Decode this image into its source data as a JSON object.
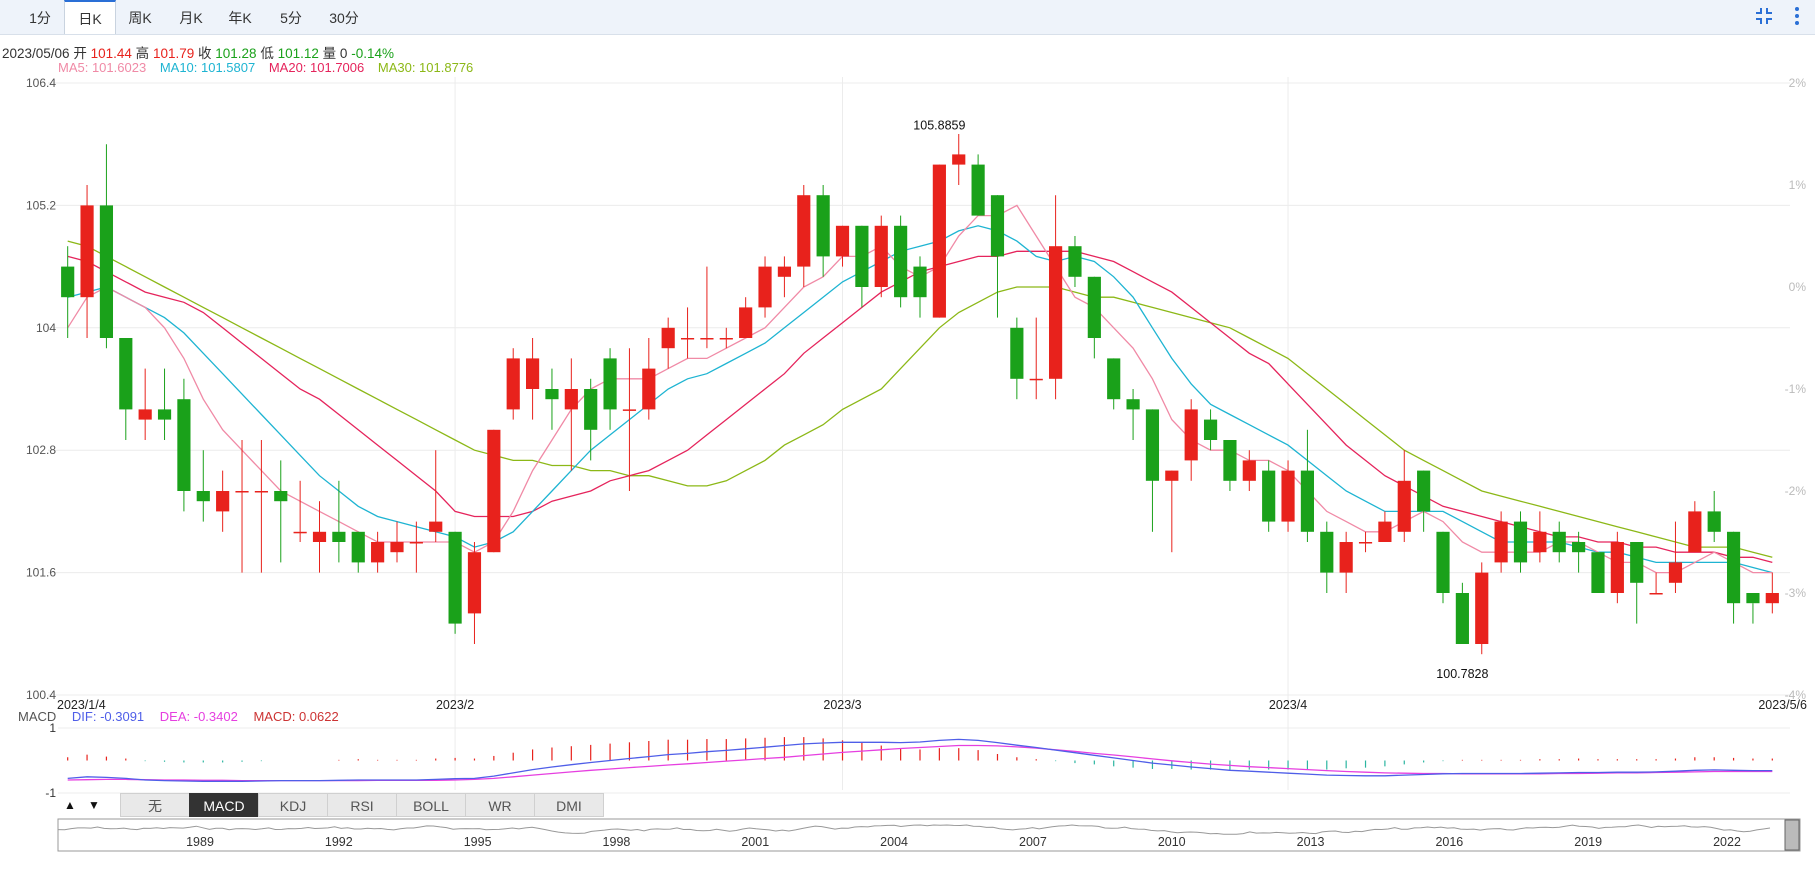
{
  "tabs": [
    {
      "label": "1分",
      "active": false
    },
    {
      "label": "日K",
      "active": true
    },
    {
      "label": "周K",
      "active": false
    },
    {
      "label": "月K",
      "active": false
    },
    {
      "label": "年K",
      "active": false
    },
    {
      "label": "5分",
      "active": false
    },
    {
      "label": "30分",
      "active": false
    }
  ],
  "toolbar": {
    "collapse_icon": "collapse-icon",
    "menu_icon": "more-vertical-icon"
  },
  "info": {
    "date": "2023/05/06",
    "open_label": "开",
    "open": "101.44",
    "high_label": "高",
    "high": "101.79",
    "close_label": "收",
    "close": "101.28",
    "low_label": "低",
    "low": "101.12",
    "vol_label": "量",
    "vol": "0",
    "change": "-0.14%"
  },
  "ma": {
    "ma5": "MA5: 101.6023",
    "ma10": "MA10: 101.5807",
    "ma20": "MA20: 101.7006",
    "ma30": "MA30: 101.8776"
  },
  "macd_info": {
    "label": "MACD",
    "dif": "DIF: -0.3091",
    "dea": "DEA: -0.3402",
    "macd": "MACD: 0.0622"
  },
  "indicators": [
    "无",
    "MACD",
    "KDJ",
    "RSI",
    "BOLL",
    "WR",
    "DMI"
  ],
  "active_indicator": "MACD",
  "colors": {
    "up": "#e8221c",
    "down": "#1aa11a",
    "ma5": "#f08aa6",
    "ma10": "#1eb4d2",
    "ma20": "#e5245c",
    "ma30": "#8cb817",
    "dif": "#4f5ee8",
    "dea": "#e63fe0",
    "grid": "#ececec"
  },
  "chart_data": {
    "type": "candlestick",
    "y_axis": {
      "ticks": [
        "106.4",
        "105.2",
        "104",
        "102.8",
        "101.6",
        "100.4"
      ],
      "min": 100.4,
      "max": 106.4
    },
    "pct_axis": {
      "ticks": [
        "2%",
        "1%",
        "0%",
        "-1%",
        "-2%",
        "-3%",
        "-4%"
      ],
      "min": -4,
      "max": 2
    },
    "x_axis": {
      "ticks": [
        {
          "label": "2023/1/4",
          "index": 0
        },
        {
          "label": "2023/2",
          "index": 20
        },
        {
          "label": "2023/3",
          "index": 40
        },
        {
          "label": "2023/4",
          "index": 63
        },
        {
          "label": "2023/5/6",
          "index": 87
        }
      ]
    },
    "annotations": [
      {
        "label": "105.8859",
        "index": 45,
        "value": 105.8859
      },
      {
        "label": "100.7828",
        "index": 72,
        "value": 100.7828
      }
    ],
    "candles": [
      [
        104.6,
        104.3,
        104.8,
        103.9
      ],
      [
        104.3,
        105.2,
        105.4,
        103.9
      ],
      [
        105.2,
        103.9,
        105.8,
        103.8
      ],
      [
        103.9,
        103.2,
        103.9,
        102.9
      ],
      [
        103.1,
        103.2,
        103.6,
        102.9
      ],
      [
        103.2,
        103.1,
        103.6,
        102.9
      ],
      [
        103.3,
        102.4,
        103.5,
        102.2
      ],
      [
        102.4,
        102.3,
        102.8,
        102.1
      ],
      [
        102.2,
        102.4,
        102.6,
        102.0
      ],
      [
        102.4,
        102.4,
        102.9,
        101.6
      ],
      [
        102.4,
        102.4,
        102.9,
        101.6
      ],
      [
        102.4,
        102.3,
        102.7,
        101.7
      ],
      [
        102.0,
        102.0,
        102.5,
        101.9
      ],
      [
        101.9,
        102.0,
        102.3,
        101.6
      ],
      [
        102.0,
        101.9,
        102.5,
        101.7
      ],
      [
        102.0,
        101.7,
        102.0,
        101.6
      ],
      [
        101.7,
        101.9,
        102.0,
        101.6
      ],
      [
        101.8,
        101.9,
        102.1,
        101.7
      ],
      [
        101.9,
        101.9,
        102.1,
        101.6
      ],
      [
        102.0,
        102.1,
        102.8,
        101.9
      ],
      [
        102.0,
        101.1,
        102.0,
        101.0
      ],
      [
        101.2,
        101.8,
        101.9,
        100.9
      ],
      [
        101.8,
        103.0,
        103.0,
        101.8
      ],
      [
        103.2,
        103.7,
        103.8,
        103.1
      ],
      [
        103.4,
        103.7,
        103.9,
        103.1
      ],
      [
        103.4,
        103.3,
        103.6,
        103.0
      ],
      [
        103.2,
        103.4,
        103.7,
        102.6
      ],
      [
        103.4,
        103.0,
        103.5,
        102.7
      ],
      [
        103.7,
        103.2,
        103.8,
        103.0
      ],
      [
        103.2,
        103.2,
        103.8,
        102.4
      ],
      [
        103.2,
        103.6,
        103.9,
        103.1
      ],
      [
        103.8,
        104.0,
        104.1,
        103.6
      ],
      [
        103.9,
        103.9,
        104.2,
        103.7
      ],
      [
        103.9,
        103.9,
        104.6,
        103.8
      ],
      [
        103.9,
        103.9,
        104.0,
        103.8
      ],
      [
        103.9,
        104.2,
        104.3,
        103.9
      ],
      [
        104.2,
        104.6,
        104.7,
        104.1
      ],
      [
        104.5,
        104.6,
        104.7,
        104.3
      ],
      [
        104.6,
        105.3,
        105.4,
        104.4
      ],
      [
        105.3,
        104.7,
        105.4,
        104.5
      ],
      [
        104.7,
        105.0,
        105.0,
        104.6
      ],
      [
        105.0,
        104.4,
        105.0,
        104.2
      ],
      [
        104.4,
        105.0,
        105.1,
        104.3
      ],
      [
        105.0,
        104.3,
        105.1,
        104.2
      ],
      [
        104.6,
        104.3,
        104.7,
        104.1
      ],
      [
        104.1,
        105.6,
        105.6,
        104.1
      ],
      [
        105.6,
        105.7,
        105.9,
        105.4
      ],
      [
        105.6,
        105.1,
        105.7,
        105.1
      ],
      [
        105.3,
        104.7,
        105.3,
        104.1
      ],
      [
        104.0,
        103.5,
        104.1,
        103.3
      ],
      [
        103.5,
        103.5,
        104.1,
        103.3
      ],
      [
        103.5,
        104.8,
        105.3,
        103.3
      ],
      [
        104.8,
        104.5,
        104.9,
        104.4
      ],
      [
        104.5,
        103.9,
        104.5,
        103.7
      ],
      [
        103.7,
        103.3,
        103.7,
        103.2
      ],
      [
        103.3,
        103.2,
        103.4,
        102.9
      ],
      [
        103.2,
        102.5,
        103.2,
        102.0
      ],
      [
        102.5,
        102.6,
        102.6,
        101.8
      ],
      [
        102.7,
        103.2,
        103.3,
        102.5
      ],
      [
        103.1,
        102.9,
        103.2,
        102.8
      ],
      [
        102.9,
        102.5,
        102.9,
        102.4
      ],
      [
        102.5,
        102.7,
        102.8,
        102.4
      ],
      [
        102.6,
        102.1,
        102.7,
        102.0
      ],
      [
        102.1,
        102.6,
        102.7,
        102.0
      ],
      [
        102.6,
        102.0,
        103.0,
        101.9
      ],
      [
        102.0,
        101.6,
        102.1,
        101.4
      ],
      [
        101.6,
        101.9,
        102.0,
        101.4
      ],
      [
        101.9,
        101.9,
        102.0,
        101.8
      ],
      [
        101.9,
        102.1,
        102.2,
        101.9
      ],
      [
        102.0,
        102.5,
        102.8,
        101.9
      ],
      [
        102.6,
        102.2,
        102.6,
        102.0
      ],
      [
        102.0,
        101.4,
        102.0,
        101.3
      ],
      [
        101.4,
        100.9,
        101.5,
        100.9
      ],
      [
        100.9,
        101.6,
        101.7,
        100.8
      ],
      [
        101.7,
        102.1,
        102.2,
        101.6
      ],
      [
        102.1,
        101.7,
        102.2,
        101.6
      ],
      [
        101.8,
        102.0,
        102.2,
        101.7
      ],
      [
        102.0,
        101.8,
        102.1,
        101.7
      ],
      [
        101.9,
        101.8,
        102.0,
        101.6
      ],
      [
        101.8,
        101.4,
        101.8,
        101.4
      ],
      [
        101.4,
        101.9,
        102.0,
        101.3
      ],
      [
        101.9,
        101.5,
        101.9,
        101.1
      ],
      [
        101.4,
        101.4,
        101.6,
        101.4
      ],
      [
        101.5,
        101.7,
        102.1,
        101.4
      ],
      [
        101.8,
        102.2,
        102.3,
        101.8
      ],
      [
        102.2,
        102.0,
        102.4,
        101.9
      ],
      [
        102.0,
        101.3,
        102.0,
        101.1
      ],
      [
        101.4,
        101.3,
        101.3,
        101.1
      ],
      [
        101.3,
        101.4,
        101.6,
        101.2
      ]
    ],
    "ma5": [
      104.0,
      104.3,
      104.4,
      104.3,
      104.2,
      104.0,
      103.7,
      103.3,
      103.0,
      102.8,
      102.6,
      102.4,
      102.3,
      102.2,
      102.1,
      102.0,
      101.9,
      101.9,
      101.9,
      101.9,
      101.9,
      101.8,
      101.9,
      102.2,
      102.6,
      102.9,
      103.2,
      103.4,
      103.5,
      103.5,
      103.5,
      103.6,
      103.7,
      103.7,
      103.8,
      103.9,
      104.0,
      104.2,
      104.4,
      104.5,
      104.7,
      104.7,
      104.8,
      104.6,
      104.5,
      104.6,
      104.9,
      105.1,
      105.1,
      105.2,
      104.9,
      104.6,
      104.3,
      104.2,
      104.0,
      103.8,
      103.5,
      103.1,
      102.9,
      102.8,
      102.8,
      102.7,
      102.7,
      102.6,
      102.4,
      102.2,
      102.1,
      102.0,
      102.0,
      102.1,
      102.2,
      102.1,
      101.9,
      101.8,
      101.8,
      101.8,
      101.8,
      101.9,
      101.9,
      101.8,
      101.7,
      101.7,
      101.6,
      101.6,
      101.7,
      101.8,
      101.7,
      101.6,
      101.6
    ],
    "ma10": [
      104.3,
      104.35,
      104.4,
      104.3,
      104.2,
      104.1,
      103.95,
      103.75,
      103.55,
      103.35,
      103.15,
      102.95,
      102.75,
      102.55,
      102.4,
      102.25,
      102.15,
      102.1,
      102.05,
      102.0,
      101.95,
      101.85,
      101.9,
      102.0,
      102.2,
      102.4,
      102.6,
      102.8,
      102.95,
      103.1,
      103.25,
      103.4,
      103.5,
      103.55,
      103.65,
      103.75,
      103.85,
      104.0,
      104.15,
      104.3,
      104.45,
      104.55,
      104.65,
      104.75,
      104.8,
      104.85,
      104.95,
      105.0,
      104.95,
      104.85,
      104.7,
      104.65,
      104.7,
      104.65,
      104.5,
      104.3,
      104.0,
      103.7,
      103.45,
      103.25,
      103.15,
      103.05,
      102.95,
      102.85,
      102.7,
      102.55,
      102.4,
      102.3,
      102.2,
      102.2,
      102.2,
      102.2,
      102.1,
      102.0,
      101.9,
      101.9,
      101.9,
      101.9,
      101.85,
      101.8,
      101.8,
      101.75,
      101.7,
      101.7,
      101.7,
      101.7,
      101.7,
      101.65,
      101.6
    ],
    "ma20": [
      104.7,
      104.65,
      104.55,
      104.45,
      104.35,
      104.3,
      104.25,
      104.15,
      104.0,
      103.85,
      103.7,
      103.55,
      103.4,
      103.3,
      103.15,
      103.0,
      102.85,
      102.7,
      102.55,
      102.4,
      102.2,
      102.15,
      102.15,
      102.15,
      102.2,
      102.3,
      102.35,
      102.4,
      102.5,
      102.55,
      102.6,
      102.7,
      102.8,
      102.95,
      103.1,
      103.25,
      103.4,
      103.55,
      103.75,
      103.9,
      104.05,
      104.2,
      104.35,
      104.45,
      104.55,
      104.6,
      104.65,
      104.7,
      104.7,
      104.75,
      104.75,
      104.75,
      104.75,
      104.7,
      104.65,
      104.55,
      104.45,
      104.35,
      104.2,
      104.05,
      103.9,
      103.75,
      103.65,
      103.45,
      103.25,
      103.05,
      102.85,
      102.7,
      102.55,
      102.45,
      102.35,
      102.25,
      102.2,
      102.15,
      102.1,
      102.05,
      102.0,
      101.95,
      101.95,
      101.9,
      101.9,
      101.85,
      101.85,
      101.8,
      101.8,
      101.8,
      101.75,
      101.75,
      101.7
    ],
    "ma30": [
      104.85,
      104.8,
      104.7,
      104.6,
      104.5,
      104.4,
      104.3,
      104.2,
      104.1,
      104.0,
      103.9,
      103.8,
      103.7,
      103.6,
      103.5,
      103.4,
      103.3,
      103.2,
      103.1,
      103.0,
      102.9,
      102.8,
      102.75,
      102.7,
      102.7,
      102.65,
      102.65,
      102.6,
      102.6,
      102.55,
      102.55,
      102.5,
      102.45,
      102.45,
      102.5,
      102.6,
      102.7,
      102.85,
      102.95,
      103.05,
      103.2,
      103.3,
      103.4,
      103.6,
      103.8,
      104.0,
      104.15,
      104.25,
      104.35,
      104.4,
      104.4,
      104.4,
      104.35,
      104.3,
      104.3,
      104.25,
      104.2,
      104.15,
      104.1,
      104.05,
      104.0,
      103.9,
      103.8,
      103.7,
      103.55,
      103.4,
      103.25,
      103.1,
      102.95,
      102.8,
      102.7,
      102.6,
      102.5,
      102.4,
      102.35,
      102.3,
      102.25,
      102.2,
      102.15,
      102.1,
      102.05,
      102.0,
      101.95,
      101.9,
      101.85,
      101.85,
      101.85,
      101.8,
      101.75
    ],
    "macd": {
      "dif": [
        -0.55,
        -0.5,
        -0.52,
        -0.55,
        -0.6,
        -0.62,
        -0.63,
        -0.64,
        -0.64,
        -0.64,
        -0.63,
        -0.62,
        -0.62,
        -0.62,
        -0.61,
        -0.6,
        -0.6,
        -0.6,
        -0.6,
        -0.58,
        -0.56,
        -0.55,
        -0.48,
        -0.38,
        -0.28,
        -0.2,
        -0.13,
        -0.06,
        0.0,
        0.06,
        0.12,
        0.18,
        0.22,
        0.27,
        0.31,
        0.36,
        0.41,
        0.46,
        0.51,
        0.54,
        0.56,
        0.56,
        0.56,
        0.55,
        0.57,
        0.62,
        0.65,
        0.62,
        0.55,
        0.47,
        0.4,
        0.32,
        0.24,
        0.16,
        0.08,
        0.0,
        -0.08,
        -0.14,
        -0.2,
        -0.25,
        -0.3,
        -0.33,
        -0.36,
        -0.39,
        -0.42,
        -0.45,
        -0.46,
        -0.47,
        -0.47,
        -0.45,
        -0.43,
        -0.41,
        -0.4,
        -0.4,
        -0.4,
        -0.4,
        -0.39,
        -0.38,
        -0.37,
        -0.37,
        -0.36,
        -0.36,
        -0.35,
        -0.33,
        -0.3,
        -0.29,
        -0.3,
        -0.31,
        -0.31
      ],
      "dea": [
        -0.6,
        -0.59,
        -0.58,
        -0.58,
        -0.59,
        -0.6,
        -0.6,
        -0.61,
        -0.61,
        -0.62,
        -0.62,
        -0.62,
        -0.62,
        -0.62,
        -0.62,
        -0.62,
        -0.61,
        -0.61,
        -0.61,
        -0.61,
        -0.6,
        -0.58,
        -0.55,
        -0.5,
        -0.45,
        -0.4,
        -0.35,
        -0.3,
        -0.26,
        -0.22,
        -0.18,
        -0.14,
        -0.1,
        -0.06,
        -0.02,
        0.02,
        0.06,
        0.1,
        0.15,
        0.2,
        0.25,
        0.29,
        0.33,
        0.37,
        0.4,
        0.43,
        0.46,
        0.46,
        0.45,
        0.42,
        0.38,
        0.33,
        0.28,
        0.22,
        0.17,
        0.11,
        0.05,
        -0.01,
        -0.06,
        -0.11,
        -0.15,
        -0.19,
        -0.22,
        -0.25,
        -0.28,
        -0.31,
        -0.34,
        -0.36,
        -0.38,
        -0.39,
        -0.4,
        -0.4,
        -0.41,
        -0.41,
        -0.41,
        -0.41,
        -0.41,
        -0.4,
        -0.4,
        -0.39,
        -0.38,
        -0.38,
        -0.37,
        -0.36,
        -0.35,
        -0.34,
        -0.34,
        -0.34,
        -0.34
      ],
      "ylim": [
        -1.0,
        1.0
      ],
      "ticks": [
        "1",
        "-1"
      ]
    },
    "overview": {
      "ticks": [
        "1989",
        "1992",
        "1995",
        "1998",
        "2001",
        "2004",
        "2007",
        "2010",
        "2013",
        "2016",
        "2019",
        "2022"
      ]
    }
  }
}
